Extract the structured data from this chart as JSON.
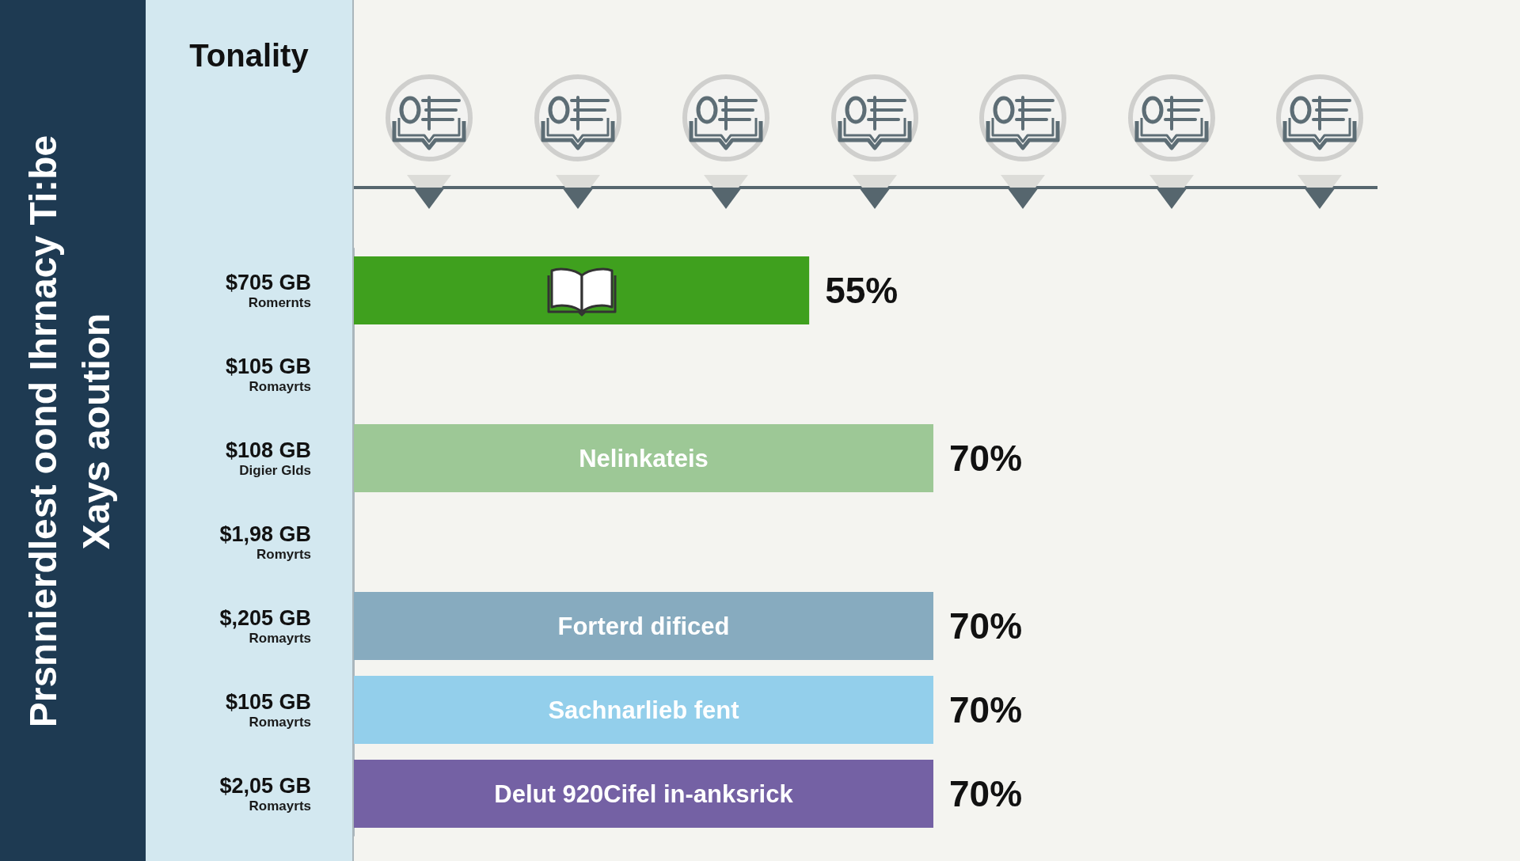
{
  "chart_data": {
    "type": "bar",
    "orientation": "horizontal",
    "title": "Prsnnierdlest oond Ihrnacy Ti:be Xays aoution",
    "subtitle": "Tonality",
    "categories": [
      "$705 GB\nRomernts",
      "$105 GB\nRomayrts",
      "$108 GB\nDigier Glds",
      "$1,98 GB\nRomyrts",
      "$,205 GB\nRomayrts",
      "$105 GB\nRomayrts",
      "$2,05 GB\nRomayrts"
    ],
    "values": [
      55,
      null,
      70,
      null,
      70,
      70,
      70
    ],
    "colors": [
      "#3fa01e",
      null,
      "#9dc896",
      null,
      "#87abbf",
      "#93cfeb",
      "#7461a4"
    ],
    "value_labels": [
      "55%",
      null,
      "70%",
      null,
      "70%",
      "70%",
      "70%"
    ],
    "tick_labels": "y",
    "annotations": [
      "Nelinkateis",
      "Forterd dificed",
      "Sachnarlieb fent",
      "Delut 920Cifel in-anksrick"
    ]
  }
}
